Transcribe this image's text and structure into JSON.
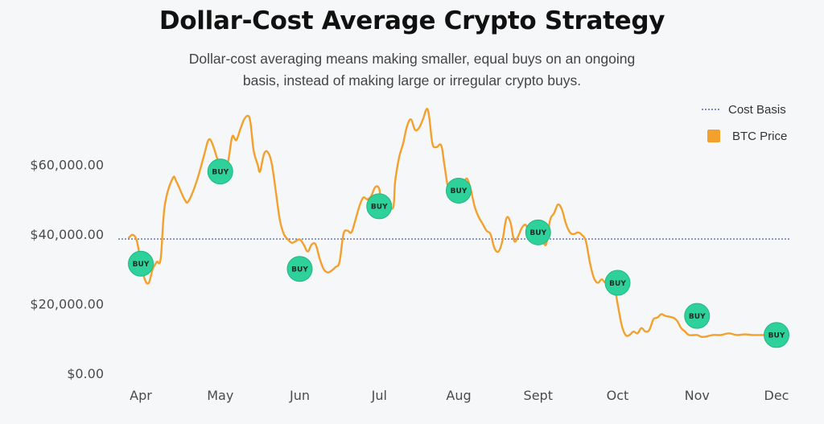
{
  "header": {
    "title": "Dollar-Cost Average Crypto Strategy",
    "subtitle_lines": [
      "Dollar-cost averaging means making smaller, equal buys on an ongoing",
      "basis, instead of making large or irregular crypto buys."
    ]
  },
  "chart_data": {
    "type": "line",
    "title": "Dollar-Cost Average Crypto Strategy",
    "xlabel": "",
    "ylabel": "",
    "grid": false,
    "legend_position": "top-right",
    "x_categories": [
      "Apr",
      "May",
      "Jun",
      "Jul",
      "Aug",
      "Sept",
      "Oct",
      "Nov",
      "Dec"
    ],
    "y_ticks": [
      {
        "value": 0,
        "label": "$0.00"
      },
      {
        "value": 20000,
        "label": "$20,000.00"
      },
      {
        "value": 40000,
        "label": "$40,000.00"
      },
      {
        "value": 60000,
        "label": "$60,000.00"
      }
    ],
    "xlim": [
      -0.15,
      8.05
    ],
    "ylim": [
      0,
      75000
    ],
    "cost_basis": {
      "name": "Cost Basis",
      "value": 38600,
      "color": "#3949ab"
    },
    "series": [
      {
        "name": "BTC Price",
        "color": "#f4a02c",
        "points": [
          [
            -0.15,
            39000
          ],
          [
            -0.1,
            39800
          ],
          [
            -0.05,
            38000
          ],
          [
            0.0,
            32000
          ],
          [
            0.05,
            27000
          ],
          [
            0.1,
            26000
          ],
          [
            0.15,
            30000
          ],
          [
            0.2,
            32000
          ],
          [
            0.25,
            33000
          ],
          [
            0.3,
            48000
          ],
          [
            0.4,
            56000
          ],
          [
            0.45,
            55000
          ],
          [
            0.55,
            50000
          ],
          [
            0.6,
            49500
          ],
          [
            0.7,
            55000
          ],
          [
            0.8,
            63000
          ],
          [
            0.85,
            67000
          ],
          [
            0.9,
            66000
          ],
          [
            1.0,
            59000
          ],
          [
            1.05,
            57500
          ],
          [
            1.1,
            61000
          ],
          [
            1.15,
            68000
          ],
          [
            1.2,
            67000
          ],
          [
            1.25,
            70000
          ],
          [
            1.3,
            73000
          ],
          [
            1.35,
            74000
          ],
          [
            1.38,
            72000
          ],
          [
            1.42,
            64000
          ],
          [
            1.47,
            60000
          ],
          [
            1.5,
            58000
          ],
          [
            1.55,
            63000
          ],
          [
            1.6,
            63500
          ],
          [
            1.65,
            60000
          ],
          [
            1.7,
            52000
          ],
          [
            1.75,
            44000
          ],
          [
            1.8,
            40000
          ],
          [
            1.85,
            38500
          ],
          [
            1.9,
            37500
          ],
          [
            1.95,
            38000
          ],
          [
            2.0,
            38500
          ],
          [
            2.05,
            37000
          ],
          [
            2.1,
            35000
          ],
          [
            2.15,
            37000
          ],
          [
            2.2,
            37000
          ],
          [
            2.25,
            33000
          ],
          [
            2.3,
            30000
          ],
          [
            2.35,
            29000
          ],
          [
            2.4,
            29500
          ],
          [
            2.45,
            30500
          ],
          [
            2.5,
            32000
          ],
          [
            2.55,
            40000
          ],
          [
            2.6,
            41000
          ],
          [
            2.65,
            40500
          ],
          [
            2.7,
            44000
          ],
          [
            2.75,
            48000
          ],
          [
            2.8,
            50500
          ],
          [
            2.85,
            50000
          ],
          [
            2.9,
            51000
          ],
          [
            2.95,
            53500
          ],
          [
            3.0,
            53000
          ],
          [
            3.03,
            48000
          ],
          [
            3.08,
            47000
          ],
          [
            3.13,
            47500
          ],
          [
            3.18,
            48000
          ],
          [
            3.2,
            55000
          ],
          [
            3.25,
            62000
          ],
          [
            3.3,
            66000
          ],
          [
            3.35,
            71000
          ],
          [
            3.4,
            73000
          ],
          [
            3.45,
            70000
          ],
          [
            3.5,
            70500
          ],
          [
            3.55,
            73000
          ],
          [
            3.6,
            76000
          ],
          [
            3.63,
            73500
          ],
          [
            3.67,
            66000
          ],
          [
            3.72,
            65000
          ],
          [
            3.78,
            65500
          ],
          [
            3.82,
            60000
          ],
          [
            3.87,
            53000
          ],
          [
            3.92,
            52500
          ],
          [
            4.0,
            51500
          ],
          [
            4.05,
            53500
          ],
          [
            4.1,
            56000
          ],
          [
            4.15,
            53000
          ],
          [
            4.2,
            48000
          ],
          [
            4.25,
            45000
          ],
          [
            4.3,
            43000
          ],
          [
            4.35,
            41000
          ],
          [
            4.4,
            40000
          ],
          [
            4.45,
            36000
          ],
          [
            4.5,
            35000
          ],
          [
            4.55,
            38000
          ],
          [
            4.6,
            44500
          ],
          [
            4.65,
            43500
          ],
          [
            4.7,
            38000
          ],
          [
            4.75,
            39500
          ],
          [
            4.8,
            42000
          ],
          [
            4.85,
            42500
          ],
          [
            4.9,
            39000
          ],
          [
            5.0,
            40500
          ],
          [
            5.05,
            39000
          ],
          [
            5.1,
            37000
          ],
          [
            5.15,
            44000
          ],
          [
            5.2,
            46000
          ],
          [
            5.25,
            48500
          ],
          [
            5.3,
            47000
          ],
          [
            5.35,
            43000
          ],
          [
            5.4,
            40500
          ],
          [
            5.45,
            40000
          ],
          [
            5.5,
            40500
          ],
          [
            5.55,
            39800
          ],
          [
            5.6,
            38000
          ],
          [
            5.65,
            32000
          ],
          [
            5.7,
            27500
          ],
          [
            5.75,
            26000
          ],
          [
            5.8,
            27000
          ],
          [
            5.85,
            26000
          ],
          [
            5.9,
            27000
          ],
          [
            5.95,
            26500
          ],
          [
            6.0,
            20000
          ],
          [
            6.05,
            14000
          ],
          [
            6.1,
            11000
          ],
          [
            6.15,
            11000
          ],
          [
            6.2,
            12000
          ],
          [
            6.25,
            11500
          ],
          [
            6.3,
            13000
          ],
          [
            6.35,
            12000
          ],
          [
            6.4,
            12500
          ],
          [
            6.45,
            15500
          ],
          [
            6.5,
            16000
          ],
          [
            6.55,
            17000
          ],
          [
            6.6,
            16500
          ],
          [
            6.7,
            16000
          ],
          [
            6.75,
            15000
          ],
          [
            6.8,
            13000
          ],
          [
            6.85,
            12000
          ],
          [
            6.9,
            11000
          ],
          [
            7.0,
            11000
          ],
          [
            7.05,
            10500
          ],
          [
            7.1,
            10500
          ],
          [
            7.2,
            11000
          ],
          [
            7.3,
            11000
          ],
          [
            7.4,
            11500
          ],
          [
            7.5,
            11000
          ],
          [
            7.6,
            11200
          ],
          [
            7.7,
            11000
          ],
          [
            7.8,
            11000
          ],
          [
            7.9,
            11000
          ],
          [
            8.0,
            11000
          ]
        ]
      }
    ],
    "buy_markers": [
      {
        "x": 0.0,
        "y": 31500,
        "label": "BUY"
      },
      {
        "x": 1.0,
        "y": 58000,
        "label": "BUY"
      },
      {
        "x": 2.0,
        "y": 30000,
        "label": "BUY"
      },
      {
        "x": 3.0,
        "y": 48000,
        "label": "BUY"
      },
      {
        "x": 4.0,
        "y": 52500,
        "label": "BUY"
      },
      {
        "x": 5.0,
        "y": 40500,
        "label": "BUY"
      },
      {
        "x": 6.0,
        "y": 26000,
        "label": "BUY"
      },
      {
        "x": 7.0,
        "y": 16500,
        "label": "BUY"
      },
      {
        "x": 8.0,
        "y": 11000,
        "label": "BUY"
      }
    ],
    "marker_color": "#2fd19a",
    "marker_outline": "#20b783"
  }
}
